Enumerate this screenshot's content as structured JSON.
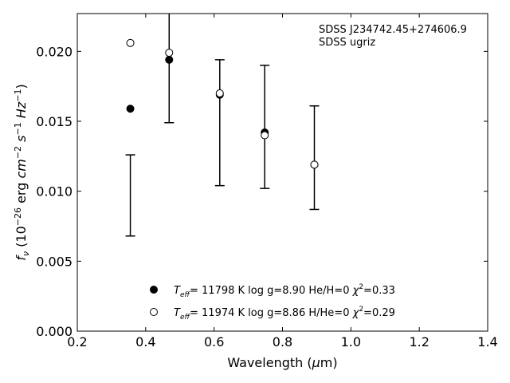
{
  "chart_data": {
    "type": "scatter",
    "title": "",
    "annotation": {
      "line1": "SDSS J234742.45+274606.9",
      "line2": "SDSS ugriz"
    },
    "xlabel": "Wavelength (μm)",
    "ylabel": "f_ν (10^-26 erg cm^-2 s^-1 Hz^-1)",
    "xlim": [
      0.2,
      1.4
    ],
    "ylim": [
      0.0,
      0.0227
    ],
    "xticks": [
      0.2,
      0.4,
      0.6,
      0.8,
      1.0,
      1.2,
      1.4
    ],
    "xtick_labels": [
      "0.2",
      "0.4",
      "0.6",
      "0.8",
      "1.0",
      "1.2",
      "1.4"
    ],
    "yticks": [
      0.0,
      0.005,
      0.01,
      0.015,
      0.02
    ],
    "ytick_labels": [
      "0.000",
      "0.005",
      "0.010",
      "0.015",
      "0.020"
    ],
    "grid": false,
    "legend_position": "bottom-center",
    "observed": {
      "x": [
        0.3551,
        0.4686,
        0.6166,
        0.748,
        0.8932
      ],
      "y": [
        0.0097,
        0.0172,
        0.0149,
        0.0146,
        0.0124
      ],
      "yerr_low": [
        0.0029,
        0.0023,
        0.0045,
        0.0044,
        0.0037
      ],
      "yerr_high": [
        0.0029,
        0.0081,
        0.0045,
        0.0044,
        0.0037
      ],
      "upper_capped": [
        true,
        false,
        true,
        true,
        true
      ]
    },
    "series": [
      {
        "name": "He/H=0",
        "marker": "filled-circle",
        "x": [
          0.3551,
          0.4686,
          0.6166,
          0.748,
          0.8932
        ],
        "y": [
          0.0159,
          0.0194,
          0.0169,
          0.0142,
          0.0119
        ]
      },
      {
        "name": "H/He=0",
        "marker": "open-circle",
        "x": [
          0.3551,
          0.4686,
          0.6166,
          0.748,
          0.8932
        ],
        "y": [
          0.0206,
          0.0199,
          0.017,
          0.014,
          0.0119
        ]
      }
    ],
    "legend": [
      {
        "marker": "filled-circle",
        "teff": "11798",
        "logg": "8.90",
        "comp": "He/H=0",
        "chi2": "0.33"
      },
      {
        "marker": "open-circle",
        "teff": "11974",
        "logg": "8.86",
        "comp": "H/He=0",
        "chi2": "0.29"
      }
    ]
  }
}
